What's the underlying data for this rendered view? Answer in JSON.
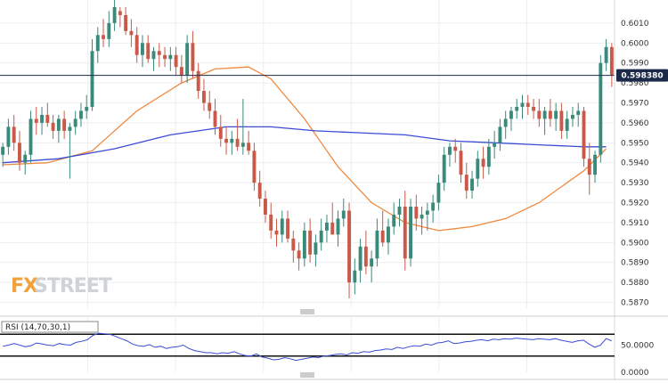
{
  "chart_data": [
    {
      "type": "candlestick",
      "title": "",
      "ylim": [
        0.5868,
        0.6018
      ],
      "yticks": [
        "0.6010",
        "0.6000",
        "0.5990",
        "0.5980",
        "0.5970",
        "0.5960",
        "0.5950",
        "0.5940",
        "0.5930",
        "0.5920",
        "0.5910",
        "0.5900",
        "0.5890",
        "0.5880",
        "0.5870"
      ],
      "current_price": "0.598380",
      "current_value": 0.59838,
      "grid": true,
      "colors": {
        "up": "#3a8a7a",
        "down": "#c95a4a",
        "ma_fast": "#f0883e",
        "ma_slow": "#3b4bd6",
        "price_line": "#1c2a4a",
        "price_tag_bg": "#1c2a4a"
      },
      "candles": [
        [
          0.5944,
          0.595,
          0.5938,
          0.5948
        ],
        [
          0.5948,
          0.5962,
          0.5944,
          0.5958
        ],
        [
          0.5958,
          0.5964,
          0.5946,
          0.595
        ],
        [
          0.595,
          0.5956,
          0.5936,
          0.594
        ],
        [
          0.594,
          0.5946,
          0.5934,
          0.5944
        ],
        [
          0.5944,
          0.5966,
          0.594,
          0.5962
        ],
        [
          0.5962,
          0.5968,
          0.5954,
          0.596
        ],
        [
          0.596,
          0.5968,
          0.5954,
          0.5964
        ],
        [
          0.5964,
          0.597,
          0.5958,
          0.596
        ],
        [
          0.596,
          0.5964,
          0.5952,
          0.5956
        ],
        [
          0.5956,
          0.5964,
          0.595,
          0.5962
        ],
        [
          0.5962,
          0.5966,
          0.5952,
          0.5956
        ],
        [
          0.5956,
          0.596,
          0.5932,
          0.5958
        ],
        [
          0.5958,
          0.5966,
          0.5954,
          0.5962
        ],
        [
          0.5962,
          0.597,
          0.5958,
          0.5966
        ],
        [
          0.5966,
          0.5974,
          0.5962,
          0.5968
        ],
        [
          0.5968,
          0.6002,
          0.5966,
          0.5996
        ],
        [
          0.5996,
          0.6008,
          0.599,
          0.6004
        ],
        [
          0.6004,
          0.6012,
          0.5998,
          0.6002
        ],
        [
          0.6002,
          0.6016,
          0.5998,
          0.601
        ],
        [
          0.601,
          0.6022,
          0.6006,
          0.6018
        ],
        [
          0.6016,
          0.6018,
          0.6008,
          0.6014
        ],
        [
          0.6014,
          0.6018,
          0.6004,
          0.6006
        ],
        [
          0.6006,
          0.6012,
          0.5998,
          0.6004
        ],
        [
          0.6004,
          0.6008,
          0.599,
          0.5994
        ],
        [
          0.5994,
          0.6004,
          0.5988,
          0.6
        ],
        [
          0.6,
          0.6004,
          0.599,
          0.5992
        ],
        [
          0.5992,
          0.5998,
          0.5986,
          0.5996
        ],
        [
          0.5996,
          0.6,
          0.5988,
          0.5994
        ],
        [
          0.5994,
          0.5998,
          0.5988,
          0.5992
        ],
        [
          0.5992,
          0.5998,
          0.5986,
          0.5994
        ],
        [
          0.5994,
          0.5998,
          0.5984,
          0.5988
        ],
        [
          0.5988,
          0.5994,
          0.598,
          0.5984
        ],
        [
          0.5984,
          0.6004,
          0.598,
          0.6
        ],
        [
          0.6,
          0.6006,
          0.5982,
          0.5986
        ],
        [
          0.5986,
          0.599,
          0.5972,
          0.5976
        ],
        [
          0.5976,
          0.5982,
          0.5966,
          0.597
        ],
        [
          0.597,
          0.5976,
          0.5962,
          0.5966
        ],
        [
          0.5966,
          0.5972,
          0.5954,
          0.5958
        ],
        [
          0.5958,
          0.5964,
          0.5948,
          0.5952
        ],
        [
          0.5952,
          0.5958,
          0.5944,
          0.595
        ],
        [
          0.595,
          0.5956,
          0.5944,
          0.5952
        ],
        [
          0.5952,
          0.5962,
          0.5946,
          0.5948
        ],
        [
          0.5948,
          0.5972,
          0.5944,
          0.595
        ],
        [
          0.595,
          0.5956,
          0.5944,
          0.5946
        ],
        [
          0.5946,
          0.595,
          0.5926,
          0.593
        ],
        [
          0.593,
          0.5936,
          0.5918,
          0.5922
        ],
        [
          0.5922,
          0.5926,
          0.591,
          0.5914
        ],
        [
          0.5914,
          0.592,
          0.5902,
          0.5906
        ],
        [
          0.5906,
          0.5912,
          0.5898,
          0.5904
        ],
        [
          0.5904,
          0.5916,
          0.59,
          0.5912
        ],
        [
          0.5912,
          0.5916,
          0.59,
          0.5902
        ],
        [
          0.5902,
          0.5906,
          0.589,
          0.5896
        ],
        [
          0.5896,
          0.59,
          0.5886,
          0.5892
        ],
        [
          0.5892,
          0.591,
          0.5888,
          0.5906
        ],
        [
          0.5906,
          0.5912,
          0.589,
          0.5894
        ],
        [
          0.5894,
          0.5904,
          0.5888,
          0.59
        ],
        [
          0.59,
          0.5912,
          0.5896,
          0.5906
        ],
        [
          0.5906,
          0.5914,
          0.59,
          0.591
        ],
        [
          0.591,
          0.592,
          0.5904,
          0.5904
        ],
        [
          0.5904,
          0.5916,
          0.5898,
          0.5912
        ],
        [
          0.5912,
          0.5922,
          0.5908,
          0.5916
        ],
        [
          0.5916,
          0.592,
          0.5872,
          0.588
        ],
        [
          0.588,
          0.5892,
          0.5874,
          0.5886
        ],
        [
          0.5886,
          0.5902,
          0.588,
          0.5898
        ],
        [
          0.5898,
          0.5906,
          0.5884,
          0.5888
        ],
        [
          0.5888,
          0.5896,
          0.588,
          0.5892
        ],
        [
          0.5892,
          0.5912,
          0.5888,
          0.5906
        ],
        [
          0.5906,
          0.5916,
          0.5898,
          0.59
        ],
        [
          0.59,
          0.5912,
          0.5894,
          0.5908
        ],
        [
          0.5908,
          0.592,
          0.5904,
          0.5914
        ],
        [
          0.5914,
          0.5922,
          0.5908,
          0.5918
        ],
        [
          0.5918,
          0.5926,
          0.5886,
          0.5892
        ],
        [
          0.5892,
          0.5922,
          0.5888,
          0.5918
        ],
        [
          0.5918,
          0.5924,
          0.5906,
          0.5912
        ],
        [
          0.5912,
          0.5918,
          0.5904,
          0.5914
        ],
        [
          0.5914,
          0.592,
          0.5906,
          0.5916
        ],
        [
          0.5916,
          0.5924,
          0.591,
          0.592
        ],
        [
          0.592,
          0.5934,
          0.5916,
          0.593
        ],
        [
          0.593,
          0.5948,
          0.5926,
          0.5944
        ],
        [
          0.5944,
          0.595,
          0.5938,
          0.5948
        ],
        [
          0.5948,
          0.5952,
          0.594,
          0.5946
        ],
        [
          0.5946,
          0.595,
          0.593,
          0.5934
        ],
        [
          0.5934,
          0.594,
          0.5922,
          0.5926
        ],
        [
          0.5926,
          0.5936,
          0.5922,
          0.5932
        ],
        [
          0.5932,
          0.5946,
          0.5928,
          0.5942
        ],
        [
          0.5942,
          0.5948,
          0.5932,
          0.5938
        ],
        [
          0.5938,
          0.5952,
          0.5934,
          0.5948
        ],
        [
          0.5948,
          0.5956,
          0.5942,
          0.595
        ],
        [
          0.595,
          0.5962,
          0.5946,
          0.5958
        ],
        [
          0.5958,
          0.5966,
          0.5952,
          0.5962
        ],
        [
          0.5962,
          0.5968,
          0.5956,
          0.5966
        ],
        [
          0.5966,
          0.5972,
          0.5962,
          0.5968
        ],
        [
          0.5968,
          0.5974,
          0.5962,
          0.597
        ],
        [
          0.597,
          0.5974,
          0.5964,
          0.5968
        ],
        [
          0.5968,
          0.5972,
          0.5962,
          0.5966
        ],
        [
          0.5966,
          0.5972,
          0.5958,
          0.5962
        ],
        [
          0.5962,
          0.5968,
          0.5954,
          0.5966
        ],
        [
          0.5966,
          0.5972,
          0.5958,
          0.5962
        ],
        [
          0.5962,
          0.597,
          0.5956,
          0.5966
        ],
        [
          0.5966,
          0.597,
          0.5952,
          0.5956
        ],
        [
          0.5956,
          0.5966,
          0.5952,
          0.5962
        ],
        [
          0.5962,
          0.5968,
          0.5958,
          0.5964
        ],
        [
          0.5964,
          0.597,
          0.5958,
          0.5966
        ],
        [
          0.5966,
          0.5968,
          0.5938,
          0.5942
        ],
        [
          0.5942,
          0.595,
          0.5924,
          0.5934
        ],
        [
          0.5934,
          0.5946,
          0.593,
          0.5944
        ],
        [
          0.5944,
          0.5994,
          0.594,
          0.599
        ],
        [
          0.599,
          0.6002,
          0.5986,
          0.5998
        ],
        [
          0.5998,
          0.6,
          0.5978,
          0.5984
        ]
      ],
      "series": [
        {
          "color": "#f0883e",
          "points": [
            [
              0,
              0.5939
            ],
            [
              8,
              0.594
            ],
            [
              16,
              0.5946
            ],
            [
              24,
              0.5966
            ],
            [
              32,
              0.598
            ],
            [
              38,
              0.5987
            ],
            [
              44,
              0.5988
            ],
            [
              48,
              0.5982
            ],
            [
              54,
              0.5962
            ],
            [
              60,
              0.5938
            ],
            [
              66,
              0.592
            ],
            [
              72,
              0.591
            ],
            [
              78,
              0.5906
            ],
            [
              84,
              0.5908
            ],
            [
              90,
              0.5912
            ],
            [
              96,
              0.592
            ],
            [
              100,
              0.5928
            ],
            [
              104,
              0.5936
            ],
            [
              108,
              0.5947
            ]
          ]
        },
        {
          "color": "#3b4bd6",
          "points": [
            [
              0,
              0.594
            ],
            [
              10,
              0.5942
            ],
            [
              20,
              0.5947
            ],
            [
              30,
              0.5954
            ],
            [
              40,
              0.5958
            ],
            [
              48,
              0.5958
            ],
            [
              56,
              0.5956
            ],
            [
              64,
              0.5955
            ],
            [
              72,
              0.5954
            ],
            [
              80,
              0.5951
            ],
            [
              88,
              0.595
            ],
            [
              96,
              0.5949
            ],
            [
              104,
              0.5948
            ],
            [
              108,
              0.5948
            ]
          ]
        }
      ]
    },
    {
      "type": "line",
      "title": "",
      "label": "RSI (14,70,30,1)",
      "ylim": [
        0,
        100
      ],
      "yticks": [
        "50.0000",
        "0.0000"
      ],
      "levels": [
        70,
        30
      ],
      "grid": true,
      "colors": {
        "line": "#3b4bd6",
        "levels": "#111111"
      },
      "values": [
        48,
        50,
        53,
        50,
        47,
        49,
        54,
        52,
        50,
        49,
        53,
        51,
        50,
        55,
        57,
        60,
        68,
        72,
        71,
        70,
        66,
        62,
        58,
        52,
        49,
        48,
        51,
        46,
        48,
        44,
        46,
        47,
        50,
        44,
        40,
        38,
        36,
        36,
        34,
        36,
        35,
        38,
        34,
        31,
        30,
        34,
        28,
        26,
        23,
        24,
        27,
        25,
        22,
        24,
        26,
        28,
        27,
        30,
        31,
        33,
        34,
        32,
        36,
        35,
        38,
        37,
        40,
        41,
        43,
        42,
        46,
        44,
        47,
        49,
        48,
        52,
        50,
        54,
        55,
        58,
        53,
        54,
        56,
        57,
        59,
        60,
        58,
        61,
        60,
        62,
        61,
        63,
        62,
        61,
        60,
        62,
        61,
        60,
        62,
        59,
        57,
        55,
        58,
        59,
        52,
        46,
        50,
        62,
        58
      ]
    }
  ],
  "logo": {
    "part1": "FX",
    "part2": "STREET"
  }
}
